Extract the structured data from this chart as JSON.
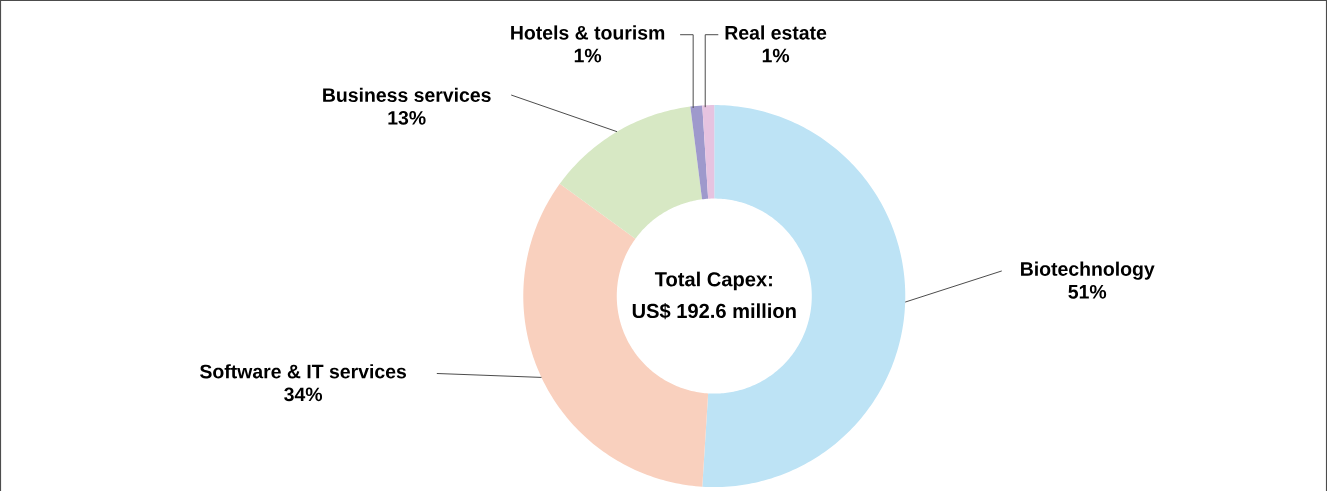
{
  "chart_data": {
    "type": "donut",
    "categories": [
      "Biotechnology",
      "Software & IT services",
      "Business services",
      "Hotels & tourism",
      "Real estate"
    ],
    "values": [
      51,
      34,
      13,
      1,
      1
    ],
    "value_labels": [
      "51%",
      "34%",
      "13%",
      "1%",
      "1%"
    ],
    "colors": [
      "#bde3f5",
      "#f9d0be",
      "#d7e8c4",
      "#9e99cc",
      "#e6c3e0"
    ],
    "annotations": [
      "Total Capex:",
      "US$ 192.6 million"
    ]
  }
}
